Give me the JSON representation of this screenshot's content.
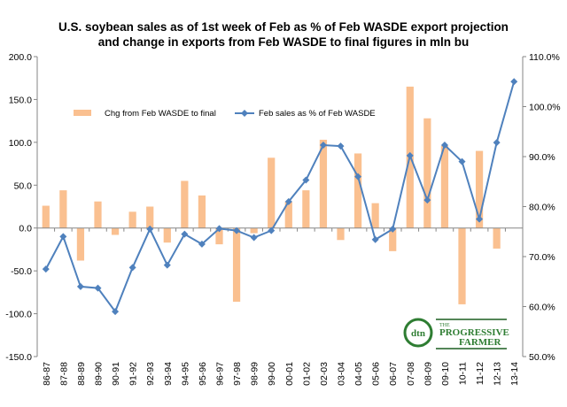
{
  "chart_data": {
    "type": "bar+line",
    "title_line1": "U.S. soybean sales as of 1st week of Feb as % of Feb WASDE export projection",
    "title_line2": "and change in exports from Feb WASDE to final figures in mln bu",
    "categories": [
      "86-87",
      "87-88",
      "88-89",
      "89-90",
      "90-91",
      "91-92",
      "92-93",
      "93-94",
      "94-95",
      "95-96",
      "96-97",
      "97-98",
      "98-99",
      "99-00",
      "00-01",
      "01-02",
      "02-03",
      "03-04",
      "04-05",
      "05-06",
      "06-07",
      "07-08",
      "08-09",
      "09-10",
      "10-11",
      "11-12",
      "12-13",
      "13-14"
    ],
    "series": [
      {
        "name": "Chg from Feb WASDE to final",
        "type": "bar",
        "axis": "left",
        "color": "#fac090",
        "values": [
          26,
          44,
          -38,
          31,
          -8,
          19,
          25,
          -17,
          55,
          38,
          -19,
          -86,
          -6,
          82,
          31,
          44,
          103,
          -14,
          87,
          29,
          -27,
          165,
          128,
          96,
          -89,
          90,
          -24,
          0
        ]
      },
      {
        "name": "Feb sales as % of Feb WASDE",
        "type": "line",
        "axis": "right",
        "color": "#4f81bd",
        "values": [
          67.5,
          74.0,
          64.0,
          63.7,
          59.0,
          67.8,
          75.5,
          68.3,
          74.5,
          72.5,
          75.6,
          75.2,
          73.8,
          75.2,
          81.0,
          85.3,
          92.3,
          92.1,
          86.0,
          73.4,
          75.5,
          90.2,
          81.3,
          92.3,
          89.0,
          77.5,
          92.8,
          105.0
        ]
      }
    ],
    "y_left": {
      "min": -150,
      "max": 200,
      "step": 50,
      "tick_labels": [
        "-150.0",
        "-100.0",
        "-50.0",
        "0.0",
        "50.0",
        "100.0",
        "150.0",
        "200.0"
      ]
    },
    "y_right": {
      "min": 50,
      "max": 110,
      "step": 10,
      "tick_labels": [
        "50.0%",
        "60.0%",
        "70.0%",
        "80.0%",
        "90.0%",
        "100.0%",
        "110.0%"
      ]
    },
    "grid": false,
    "legend_placement": "top-left inside plot"
  },
  "logo": {
    "badge": "dtn",
    "line1": "THE",
    "line2": "PROGRESSIVE",
    "line3": "FARMER",
    "color": "#2e7d32"
  }
}
